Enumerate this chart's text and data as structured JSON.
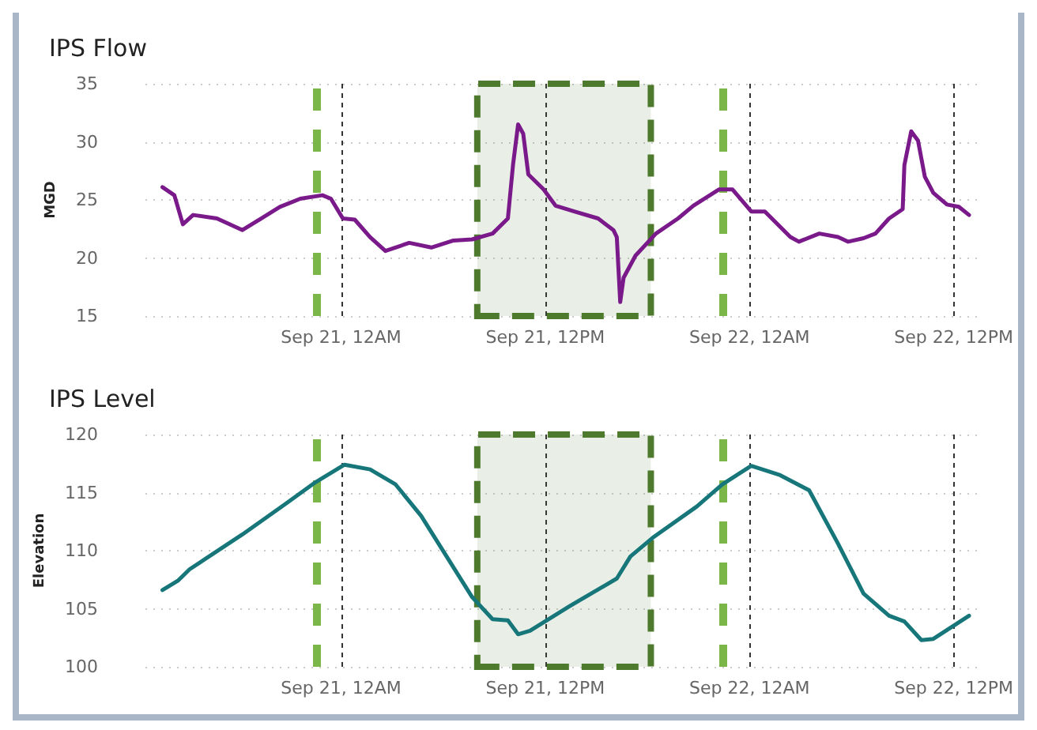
{
  "chart_data": [
    {
      "type": "line",
      "title": "IPS Flow",
      "ylabel": "MGD",
      "xlim": [
        "--09-20T12:30",
        "--09-22T13:30"
      ],
      "ylim": [
        15,
        35
      ],
      "yticks": [
        15,
        20,
        25,
        30,
        35
      ],
      "xticks": [
        {
          "value": "--09-21T00:00",
          "label": "Sep 21, 12AM"
        },
        {
          "value": "--09-21T12:00",
          "label": "Sep 21, 12PM"
        },
        {
          "value": "--09-22T00:00",
          "label": "Sep 22, 12AM"
        },
        {
          "value": "--09-22T12:00",
          "label": "Sep 22, 12PM"
        }
      ],
      "grid": true,
      "marker": "none",
      "line_style": "solid",
      "x": [
        "--09-20T13:30",
        "--09-20T14:12",
        "--09-20T14:42",
        "--09-20T15:18",
        "--09-20T16:42",
        "--09-20T18:12",
        "--09-20T19:18",
        "--09-20T20:24",
        "--09-20T21:36",
        "--09-20T22:54",
        "--09-20T23:24",
        "--09-21T00:06",
        "--09-21T00:48",
        "--09-21T01:42",
        "--09-21T02:36",
        "--09-21T04:00",
        "--09-21T05:18",
        "--09-21T06:36",
        "--09-21T07:42",
        "--09-21T08:54",
        "--09-21T09:48",
        "--09-21T10:06",
        "--09-21T10:24",
        "--09-21T10:42",
        "--09-21T11:00",
        "--09-21T11:54",
        "--09-21T12:36",
        "--09-21T13:42",
        "--09-21T15:06",
        "--09-21T16:00",
        "--09-21T16:12",
        "--09-21T16:24",
        "--09-21T16:36",
        "--09-21T17:18",
        "--09-21T18:30",
        "--09-21T19:48",
        "--09-21T20:42",
        "--09-21T22:12",
        "--09-21T23:00",
        "--09-22T00:06",
        "--09-22T00:54",
        "--09-22T02:24",
        "--09-22T02:54",
        "--09-22T04:06",
        "--09-22T05:12",
        "--09-22T05:48",
        "--09-22T06:42",
        "--09-22T07:24",
        "--09-22T08:12",
        "--09-22T09:00",
        "--09-22T09:06",
        "--09-22T09:30",
        "--09-22T09:54",
        "--09-22T10:18",
        "--09-22T10:48",
        "--09-22T11:36",
        "--09-22T12:18",
        "--09-22T12:54"
      ],
      "series": [
        {
          "color": "#7a1a8a",
          "values": [
            26.1,
            25.4,
            22.9,
            23.7,
            23.4,
            22.4,
            23.4,
            24.4,
            25.1,
            25.4,
            25.1,
            23.4,
            23.3,
            21.8,
            20.6,
            21.3,
            20.9,
            21.5,
            21.6,
            22.1,
            23.4,
            28.0,
            31.5,
            30.7,
            27.2,
            25.9,
            24.5,
            24.0,
            23.4,
            22.4,
            21.8,
            16.2,
            18.3,
            20.2,
            22.1,
            23.4,
            24.5,
            25.9,
            25.9,
            24.0,
            24.0,
            21.8,
            21.4,
            22.1,
            21.8,
            21.4,
            21.7,
            22.1,
            23.4,
            24.2,
            28.0,
            30.9,
            30.1,
            27.0,
            25.6,
            24.6,
            24.4,
            23.7
          ]
        }
      ],
      "ref_lines": [
        {
          "axis": "x",
          "value": "--09-20T22:36",
          "color": "#7ab648",
          "line_style": "dashed"
        },
        {
          "axis": "x",
          "value": "--09-21T22:24",
          "color": "#7ab648",
          "line_style": "dashed"
        }
      ],
      "bands": [
        {
          "axis": "x",
          "from": "--09-21T08:00",
          "to": "--09-21T18:12",
          "color": "#4e7a2e"
        }
      ]
    },
    {
      "type": "line",
      "title": "IPS Level",
      "ylabel": "Elevation",
      "xlim": [
        "--09-20T12:30",
        "--09-22T13:30"
      ],
      "ylim": [
        100,
        120
      ],
      "yticks": [
        100,
        105,
        110,
        115,
        120
      ],
      "xticks": [
        {
          "value": "--09-21T00:00",
          "label": "Sep 21, 12AM"
        },
        {
          "value": "--09-21T12:00",
          "label": "Sep 21, 12PM"
        },
        {
          "value": "--09-22T00:00",
          "label": "Sep 22, 12AM"
        },
        {
          "value": "--09-22T12:00",
          "label": "Sep 22, 12PM"
        }
      ],
      "grid": true,
      "marker": "none",
      "line_style": "solid",
      "x": [
        "--09-20T13:30",
        "--09-20T14:24",
        "--09-20T15:06",
        "--09-20T18:12",
        "--09-20T20:48",
        "--09-20T22:30",
        "--09-21T00:12",
        "--09-21T01:42",
        "--09-21T03:12",
        "--09-21T04:42",
        "--09-21T06:12",
        "--09-21T07:42",
        "--09-21T08:54",
        "--09-21T09:48",
        "--09-21T10:24",
        "--09-21T11:06",
        "--09-21T13:24",
        "--09-21T16:12",
        "--09-21T17:00",
        "--09-21T18:18",
        "--09-21T20:54",
        "--09-21T22:24",
        "--09-22T00:06",
        "--09-22T01:48",
        "--09-22T03:30",
        "--09-22T05:12",
        "--09-22T06:42",
        "--09-22T08:12",
        "--09-22T09:06",
        "--09-22T10:06",
        "--09-22T10:48",
        "--09-22T12:54"
      ],
      "series": [
        {
          "color": "#17767a",
          "values": [
            106.6,
            107.4,
            108.4,
            111.4,
            114.1,
            115.9,
            117.4,
            117.0,
            115.7,
            113.0,
            109.5,
            106.0,
            104.1,
            104.0,
            102.8,
            103.1,
            105.2,
            107.6,
            109.5,
            111.1,
            113.8,
            115.7,
            117.3,
            116.5,
            115.2,
            110.6,
            106.3,
            104.4,
            103.9,
            102.3,
            102.4,
            104.4
          ]
        }
      ],
      "ref_lines": [
        {
          "axis": "x",
          "value": "--09-20T22:36",
          "color": "#7ab648",
          "line_style": "dashed"
        },
        {
          "axis": "x",
          "value": "--09-21T22:24",
          "color": "#7ab648",
          "line_style": "dashed"
        }
      ],
      "bands": [
        {
          "axis": "x",
          "from": "--09-21T08:00",
          "to": "--09-21T18:12",
          "color": "#4e7a2e"
        }
      ]
    }
  ]
}
